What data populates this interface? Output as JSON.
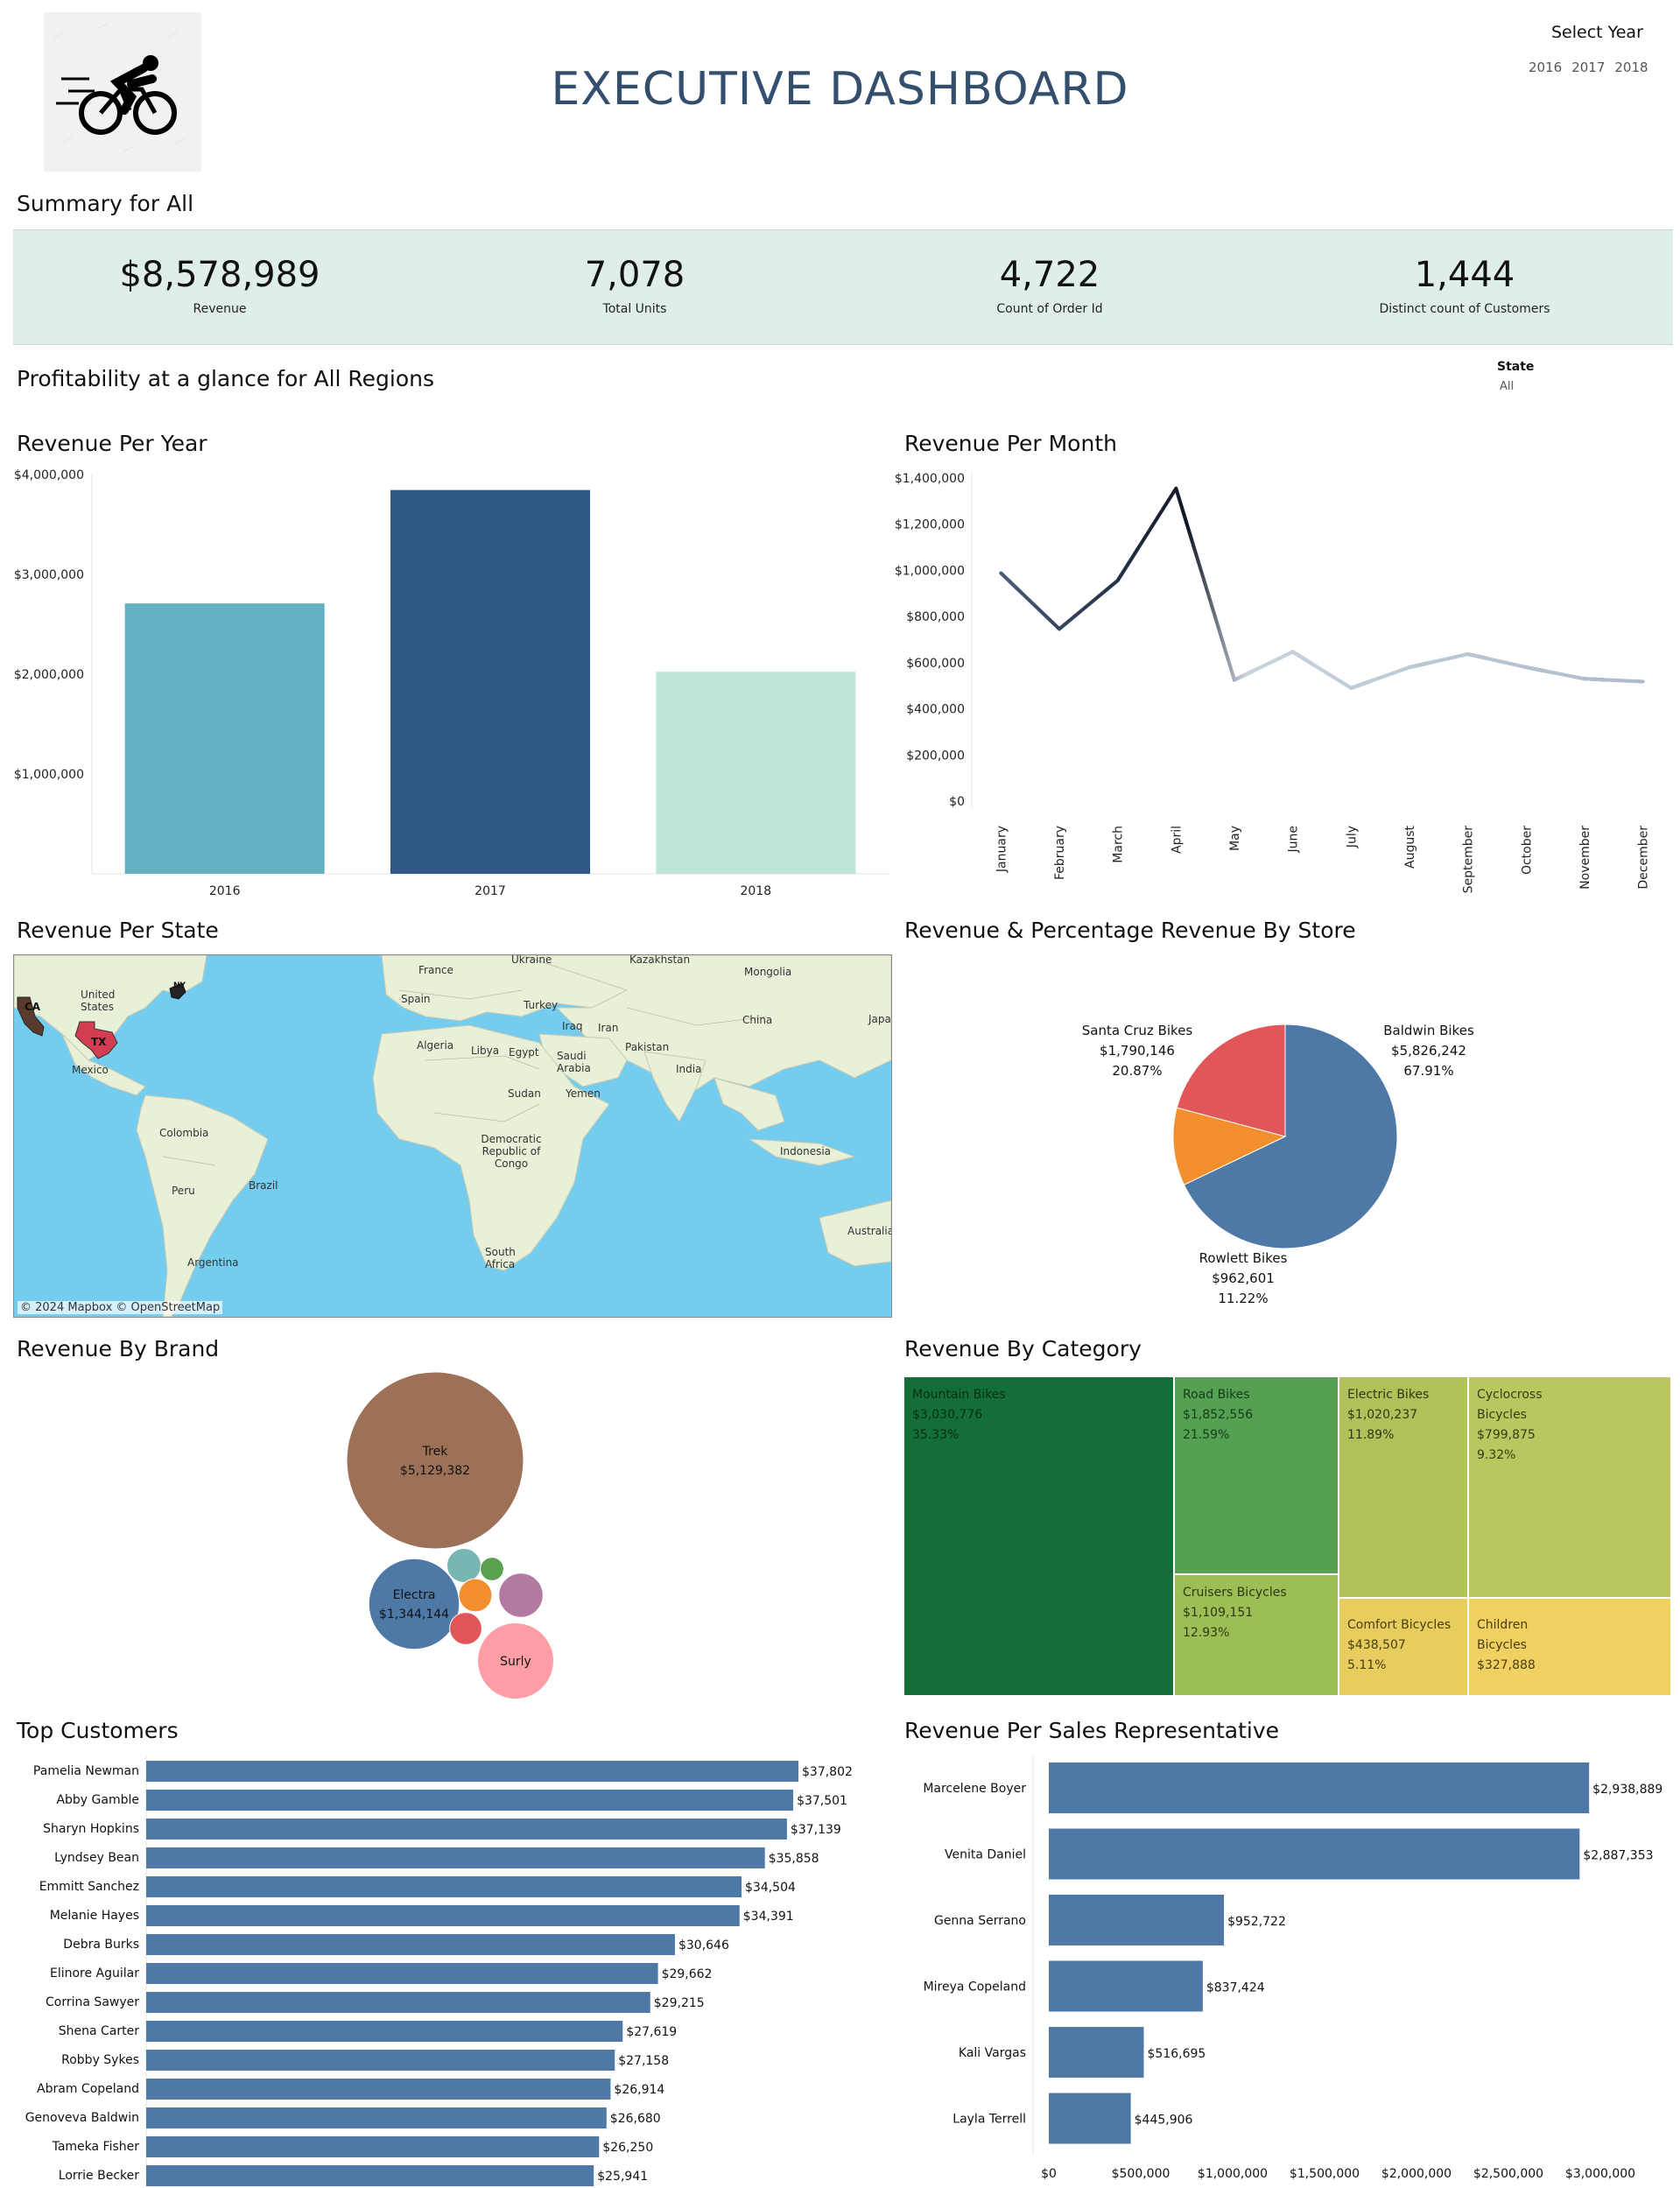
{
  "header": {
    "title": "EXECUTIVE DASHBOARD",
    "logo_icon": "cyclist-icon",
    "year_filter": {
      "title": "Select Year",
      "options": [
        "2016",
        "2017",
        "2018"
      ]
    }
  },
  "summary": {
    "title": "Summary for All",
    "kpis": [
      {
        "value": "$8,578,989",
        "label": "Revenue"
      },
      {
        "value": "7,078",
        "label": "Total Units"
      },
      {
        "value": "4,722",
        "label": "Count of Order Id"
      },
      {
        "value": "1,444",
        "label": "Distinct count of Customers"
      }
    ]
  },
  "profitability": {
    "title": "Profitability at a glance for All Regions",
    "state_filter": {
      "title": "State",
      "value": "All"
    }
  },
  "sections": {
    "revenue_per_year": "Revenue Per Year",
    "revenue_per_month": "Revenue Per Month",
    "revenue_per_state": "Revenue Per State",
    "revenue_by_store": "Revenue & Percentage Revenue By Store",
    "revenue_by_brand": "Revenue By Brand",
    "revenue_by_category": "Revenue By Category",
    "top_customers": "Top Customers",
    "revenue_per_rep": "Revenue Per Sales Representative"
  },
  "map": {
    "credit": "© 2024 Mapbox © OpenStreetMap",
    "labels": [
      "Ukraine",
      "Kazakhstan",
      "France",
      "Mongolia",
      "Spain",
      "Turkey",
      "United States",
      "Iraq",
      "Iran",
      "China",
      "Japan",
      "Algeria",
      "Libya",
      "Egypt",
      "Saudi Arabia",
      "Pakistan",
      "India",
      "Mexico",
      "Sudan",
      "Yemen",
      "Colombia",
      "Democratic Republic of Congo",
      "Indonesia",
      "Peru",
      "Brazil",
      "South Africa",
      "Argentina",
      "Australia"
    ],
    "state_markers": [
      "CA",
      "TX",
      "NY"
    ]
  },
  "chart_data": [
    {
      "id": "revenue_per_year",
      "type": "bar",
      "categories": [
        "2016",
        "2017",
        "2018"
      ],
      "values": [
        2709000,
        3845000,
        2024000
      ],
      "colors": [
        "#62b0c1",
        "#2e5986",
        "#bde5da"
      ],
      "ylim": [
        0,
        4000000
      ],
      "yticks": [
        "$1,000,000",
        "$2,000,000",
        "$3,000,000",
        "$4,000,000"
      ]
    },
    {
      "id": "revenue_per_month",
      "type": "line",
      "categories": [
        "January",
        "February",
        "March",
        "April",
        "May",
        "June",
        "July",
        "August",
        "September",
        "October",
        "November",
        "December"
      ],
      "values": [
        988000,
        746000,
        956000,
        1355000,
        525000,
        647000,
        490000,
        580000,
        637000,
        580000,
        530000,
        518000
      ],
      "ylim": [
        0,
        1400000
      ],
      "yticks": [
        "$0",
        "$200,000",
        "$400,000",
        "$600,000",
        "$800,000",
        "$1,000,000",
        "$1,200,000",
        "$1,400,000"
      ],
      "color_dark": "#111827",
      "color_light": "#c9d3de"
    },
    {
      "id": "revenue_by_store",
      "type": "pie",
      "slices": [
        {
          "name": "Baldwin Bikes",
          "value": "$5,826,242",
          "pct": "67.91%",
          "share": 67.91,
          "color": "#4e79a7"
        },
        {
          "name": "Rowlett Bikes",
          "value": "$962,601",
          "pct": "11.22%",
          "share": 11.22,
          "color": "#f28e2b"
        },
        {
          "name": "Santa Cruz Bikes",
          "value": "$1,790,146",
          "pct": "20.87%",
          "share": 20.87,
          "color": "#e15759"
        }
      ]
    },
    {
      "id": "revenue_by_brand",
      "type": "bubble",
      "bubbles": [
        {
          "name": "Trek",
          "value": "$5,129,382",
          "amount": 5129382,
          "color": "#9c7158",
          "labeled": true
        },
        {
          "name": "Electra",
          "value": "$1,344,144",
          "amount": 1344144,
          "color": "#4e79a7",
          "labeled": true
        },
        {
          "name": "Surly",
          "value": "",
          "amount": 950000,
          "color": "#ff9da7",
          "labeled": true
        },
        {
          "name": "",
          "value": "",
          "amount": 320000,
          "color": "#b07aa1",
          "labeled": false
        },
        {
          "name": "",
          "value": "",
          "amount": 190000,
          "color": "#76b7b2",
          "labeled": false
        },
        {
          "name": "",
          "value": "",
          "amount": 180000,
          "color": "#f28e2b",
          "labeled": false
        },
        {
          "name": "",
          "value": "",
          "amount": 170000,
          "color": "#e15759",
          "labeled": false
        },
        {
          "name": "",
          "value": "",
          "amount": 90000,
          "color": "#59a14f",
          "labeled": false
        }
      ]
    },
    {
      "id": "revenue_by_category",
      "type": "treemap",
      "cells": [
        {
          "name": "Mountain Bikes",
          "value": "$3,030,776",
          "pct": "35.33%",
          "color": "#136e38",
          "text": "#0a2e14"
        },
        {
          "name": "Road Bikes",
          "value": "$1,852,556",
          "pct": "21.59%",
          "color": "#54a154",
          "text": "#143b14"
        },
        {
          "name": "Cruisers Bicycles",
          "value": "$1,109,151",
          "pct": "12.93%",
          "color": "#9dbd55",
          "text": "#2c3a12"
        },
        {
          "name": "Electric Bikes",
          "value": "$1,020,237",
          "pct": "11.89%",
          "color": "#afc25a",
          "text": "#2f3712"
        },
        {
          "name": "Cyclocross Bicycles",
          "value": "$799,875",
          "pct": "9.32%",
          "color": "#bcc65e",
          "text": "#3a3a12"
        },
        {
          "name": "Comfort Bicycles",
          "value": "$438,507",
          "pct": "5.11%",
          "color": "#e6cd5e",
          "text": "#4a3d0e"
        },
        {
          "name": "Children Bicycles",
          "value": "$327,888",
          "pct": "",
          "color": "#f1d062",
          "text": "#4a3d0e"
        }
      ]
    },
    {
      "id": "top_customers",
      "type": "bar",
      "orientation": "horizontal",
      "categories": [
        "Pamelia Newman",
        "Abby Gamble",
        "Sharyn Hopkins",
        "Lyndsey Bean",
        "Emmitt Sanchez",
        "Melanie Hayes",
        "Debra Burks",
        "Elinore Aguilar",
        "Corrina Sawyer",
        "Shena Carter",
        "Robby Sykes",
        "Abram Copeland",
        "Genoveva Baldwin",
        "Tameka Fisher",
        "Lorrie Becker"
      ],
      "values": [
        37802,
        37501,
        37139,
        35858,
        34504,
        34391,
        30646,
        29662,
        29215,
        27619,
        27158,
        26914,
        26680,
        26250,
        25941
      ],
      "labels": [
        "$37,802",
        "$37,501",
        "$37,139",
        "$35,858",
        "$34,504",
        "$34,391",
        "$30,646",
        "$29,662",
        "$29,215",
        "$27,619",
        "$27,158",
        "$26,914",
        "$26,680",
        "$26,250",
        "$25,941"
      ],
      "color": "#4e79a7"
    },
    {
      "id": "revenue_per_rep",
      "type": "bar",
      "orientation": "horizontal",
      "categories": [
        "Marcelene Boyer",
        "Venita Daniel",
        "Genna Serrano",
        "Mireya Copeland",
        "Kali Vargas",
        "Layla Terrell"
      ],
      "values": [
        2938889,
        2887353,
        952722,
        837424,
        516695,
        445906
      ],
      "labels": [
        "$2,938,889",
        "$2,887,353",
        "$952,722",
        "$837,424",
        "$516,695",
        "$445,906"
      ],
      "xlim": [
        0,
        3250000
      ],
      "xticks": [
        "$0",
        "$500,000",
        "$1,000,000",
        "$1,500,000",
        "$2,000,000",
        "$2,500,000",
        "$3,000,000"
      ],
      "color": "#4e79a7"
    }
  ]
}
